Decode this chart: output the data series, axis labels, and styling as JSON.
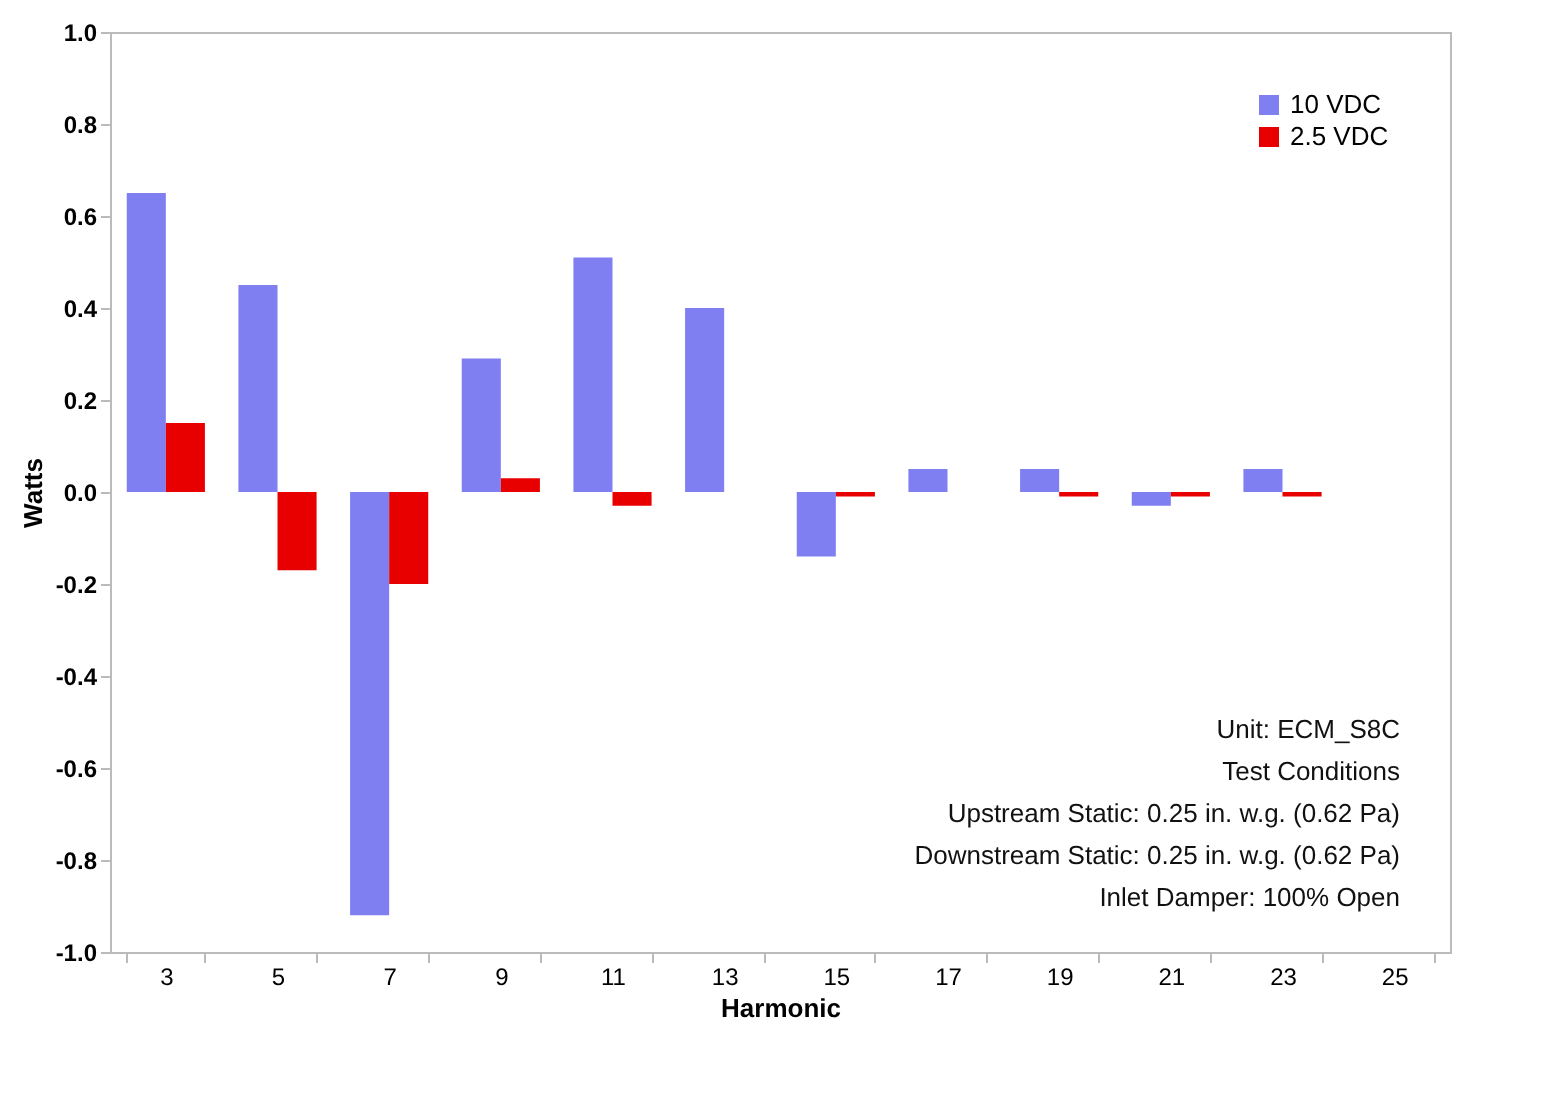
{
  "chart_data": {
    "type": "bar",
    "xlabel": "Harmonic",
    "ylabel": "Watts",
    "categories": [
      "3",
      "5",
      "7",
      "9",
      "11",
      "13",
      "15",
      "17",
      "19",
      "21",
      "23",
      "25"
    ],
    "series": [
      {
        "name": "10 VDC",
        "color": "#7f7ff2",
        "values": [
          0.65,
          0.45,
          -0.92,
          0.29,
          0.51,
          0.4,
          -0.14,
          0.05,
          0.05,
          -0.03,
          0.05,
          0
        ]
      },
      {
        "name": "2.5 VDC",
        "color": "#e80000",
        "values": [
          0.15,
          -0.17,
          -0.2,
          0.03,
          -0.03,
          0,
          -0.01,
          0,
          -0.01,
          -0.01,
          -0.01,
          0
        ]
      }
    ],
    "ylim": [
      -1.0,
      1.0
    ],
    "yticks": [
      {
        "value": -1,
        "label": "-1.0"
      },
      {
        "value": -0.8,
        "label": "-0.8"
      },
      {
        "value": -0.6,
        "label": "-0.6"
      },
      {
        "value": -0.4,
        "label": "-0.4"
      },
      {
        "value": -0.2,
        "label": "-0.2"
      },
      {
        "value": 0,
        "label": "0.0"
      },
      {
        "value": 0.2,
        "label": "0.2"
      },
      {
        "value": 0.4,
        "label": "0.4"
      },
      {
        "value": 0.6,
        "label": "0.6"
      },
      {
        "value": 0.8,
        "label": "0.8"
      },
      {
        "value": 1,
        "label": "1.0"
      }
    ],
    "grid": false,
    "legend": "top right",
    "annotations": [
      "Unit:  ECM_S8C",
      "Test Conditions",
      "Upstream Static:  0.25 in. w.g. (0.62 Pa)",
      "Downstream Static:  0.25 in. w.g. (0.62 Pa)",
      "Inlet Damper:  100% Open"
    ]
  }
}
